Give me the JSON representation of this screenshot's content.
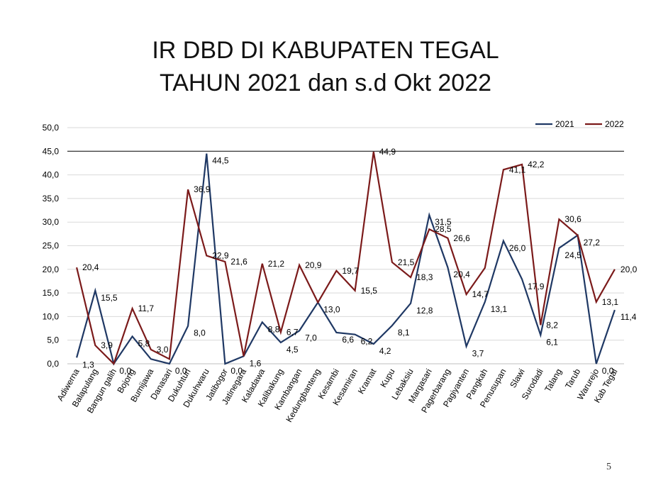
{
  "slide": {
    "title_line1": "IR DBD DI KABUPATEN TEGAL",
    "title_line2": "TAHUN 2021 dan s.d Okt 2022",
    "page_number": "5"
  },
  "chart_data": {
    "type": "line",
    "categories": [
      "Adiwerna",
      "Balapulang",
      "Bangun galih",
      "Bojong",
      "Bumijawa",
      "Danasari",
      "Dukuhturi",
      "Dukuhwaru",
      "Jatibogor",
      "Jatinegara",
      "Kaladawa",
      "Kalibakung",
      "Kambangan",
      "Kedungbanteng",
      "Kesambi",
      "Kesamiran",
      "Kramat",
      "Kupu",
      "Lebaksiu",
      "Margasari",
      "Pagerbarang",
      "Pagiyanten",
      "Pangkah",
      "Penusupan",
      "Slawi",
      "Surodadi",
      "Talang",
      "Tarub",
      "Warurejo",
      "Kab Tegal"
    ],
    "series": [
      {
        "name": "2021",
        "color": "#1f3864",
        "values": [
          1.3,
          15.5,
          0.0,
          5.8,
          1.0,
          0.0,
          8.0,
          44.5,
          0.0,
          1.6,
          8.8,
          4.5,
          7.0,
          13.0,
          6.6,
          6.2,
          4.2,
          8.1,
          12.8,
          31.5,
          20.4,
          3.7,
          13.1,
          26.0,
          17.9,
          6.1,
          24.5,
          27.2,
          0.0,
          11.4
        ],
        "labels": [
          "1,3",
          "15,5",
          "0,0",
          "5,8",
          "",
          "0,0",
          "8,0",
          "44,5",
          "0,0",
          "1,6",
          "8,8",
          "4,5",
          "7,0",
          "13,0",
          "6,6",
          "6,2",
          "4,2",
          "8,1",
          "12,8",
          "31,5",
          "20,4",
          "3,7",
          "13,1",
          "26,0",
          "17,9",
          "6,1",
          "24,5",
          "27,2",
          "0,0",
          "11,4"
        ]
      },
      {
        "name": "2022",
        "color": "#7b1a1a",
        "values": [
          20.4,
          3.9,
          0.0,
          11.7,
          3.0,
          1.0,
          36.9,
          22.9,
          21.6,
          1.6,
          21.2,
          6.7,
          20.9,
          13.0,
          19.7,
          15.5,
          44.9,
          21.5,
          18.3,
          28.5,
          26.6,
          14.7,
          20.3,
          41.1,
          42.2,
          8.2,
          30.6,
          27.2,
          13.1,
          20.0
        ],
        "labels": [
          "20,4",
          "3,9",
          "",
          "11,7",
          "3,0",
          "",
          "36,9",
          "22,9",
          "21,6",
          "",
          "21,2",
          "6,7",
          "20,9",
          "",
          "19,7",
          "15,5",
          "44,9",
          "21,5",
          "18,3",
          "28,5",
          "26,6",
          "14,7",
          "",
          "41,1",
          "42,2",
          "8,2",
          "30,6",
          "",
          "13,1",
          "20,0"
        ]
      }
    ],
    "y_ticks": [
      "0,0",
      "5,0",
      "10,0",
      "15,0",
      "20,0",
      "25,0",
      "30,0",
      "35,0",
      "40,0",
      "45,0",
      "50,0"
    ],
    "ylim": [
      0,
      50
    ],
    "y_step": 5,
    "highlight_line_value": 45,
    "grid": true,
    "legend_position": "top-right",
    "title": "IR DBD DI KABUPATEN TEGAL TAHUN 2021 dan s.d Okt 2022"
  }
}
